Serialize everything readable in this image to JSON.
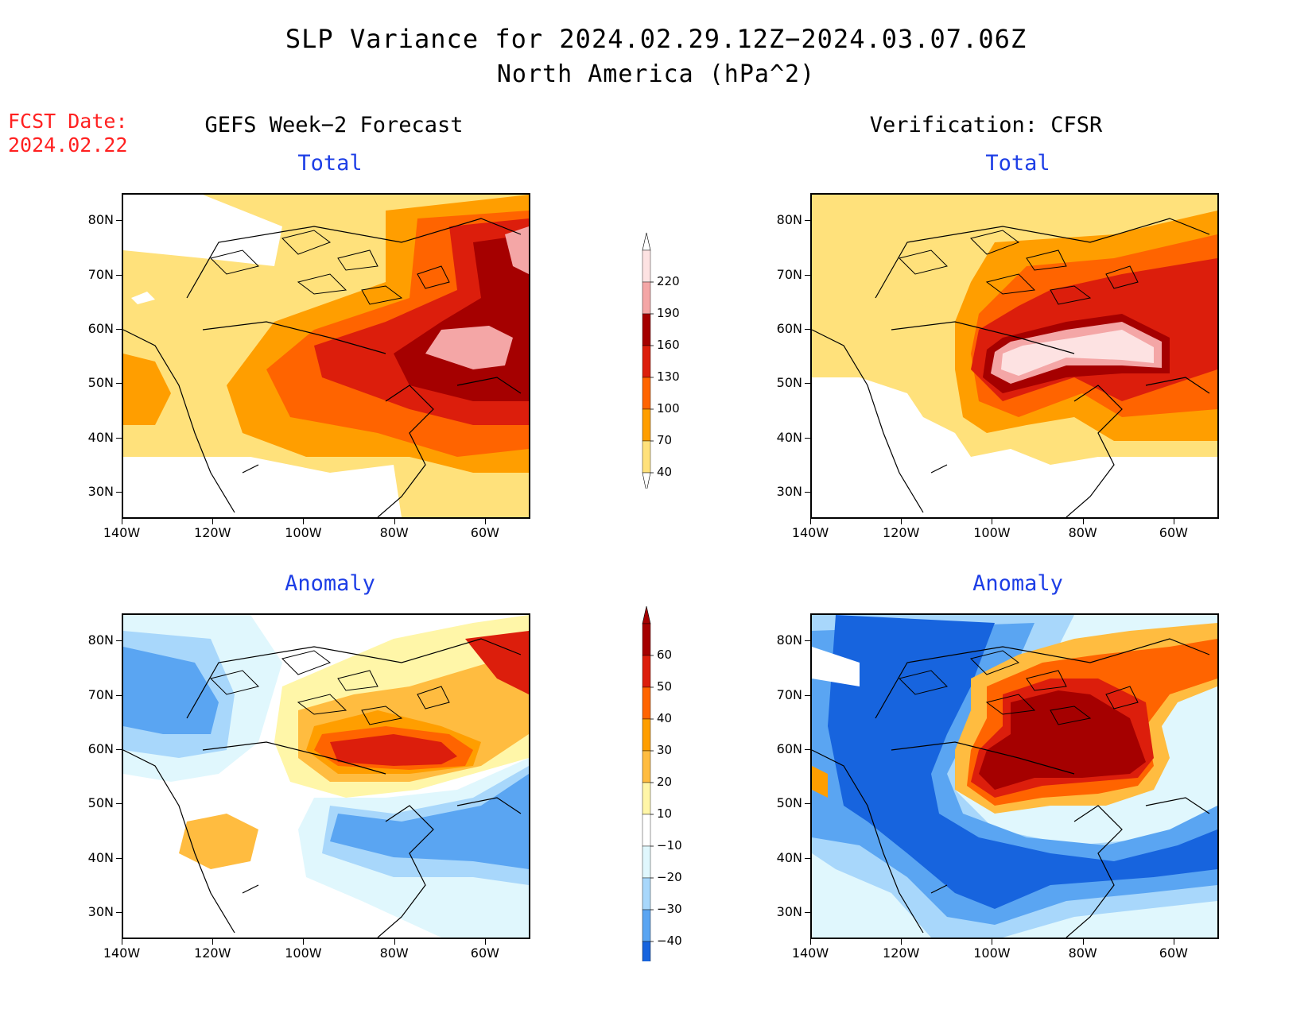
{
  "title": "SLP Variance for 2024.02.29.12Z−2024.03.07.06Z",
  "subtitle": "North America (hPa^2)",
  "fcst_date_label": "FCST Date:",
  "fcst_date_value": "2024.02.22",
  "left_column_title": "GEFS Week−2 Forecast",
  "right_column_title": "Verification: CFSR",
  "panels": [
    {
      "id": "fcst-total",
      "subtitle": "Total",
      "field": "total"
    },
    {
      "id": "ver-total",
      "subtitle": "Total",
      "field": "total"
    },
    {
      "id": "fcst-anom",
      "subtitle": "Anomaly",
      "field": "anomaly"
    },
    {
      "id": "ver-anom",
      "subtitle": "Anomaly",
      "field": "anomaly"
    }
  ],
  "axes": {
    "lat_ticks": [
      "80N",
      "70N",
      "60N",
      "50N",
      "40N",
      "30N"
    ],
    "lon_ticks": [
      "140W",
      "120W",
      "100W",
      "80W",
      "60W"
    ],
    "lat_range": [
      25,
      85
    ],
    "lon_range": [
      -140,
      -50
    ]
  },
  "colorbar_total": {
    "levels": [
      "220",
      "190",
      "160",
      "130",
      "100",
      "70",
      "40"
    ],
    "colors": [
      "#fde2e2",
      "#f4a6a6",
      "#a50000",
      "#dc1e0c",
      "#ff6400",
      "#ff9e00",
      "#ffe17b"
    ]
  },
  "colorbar_anomaly": {
    "levels": [
      "60",
      "50",
      "40",
      "30",
      "20",
      "10",
      "−10",
      "−20",
      "−30",
      "−40"
    ],
    "colors": [
      "#a50000",
      "#dc1e0c",
      "#ff6400",
      "#ff9e00",
      "#ffbc40",
      "#fff6a8",
      "#ffffff",
      "#e0f7fd",
      "#a8d7fb",
      "#5aa5f2",
      "#1764de"
    ]
  }
}
